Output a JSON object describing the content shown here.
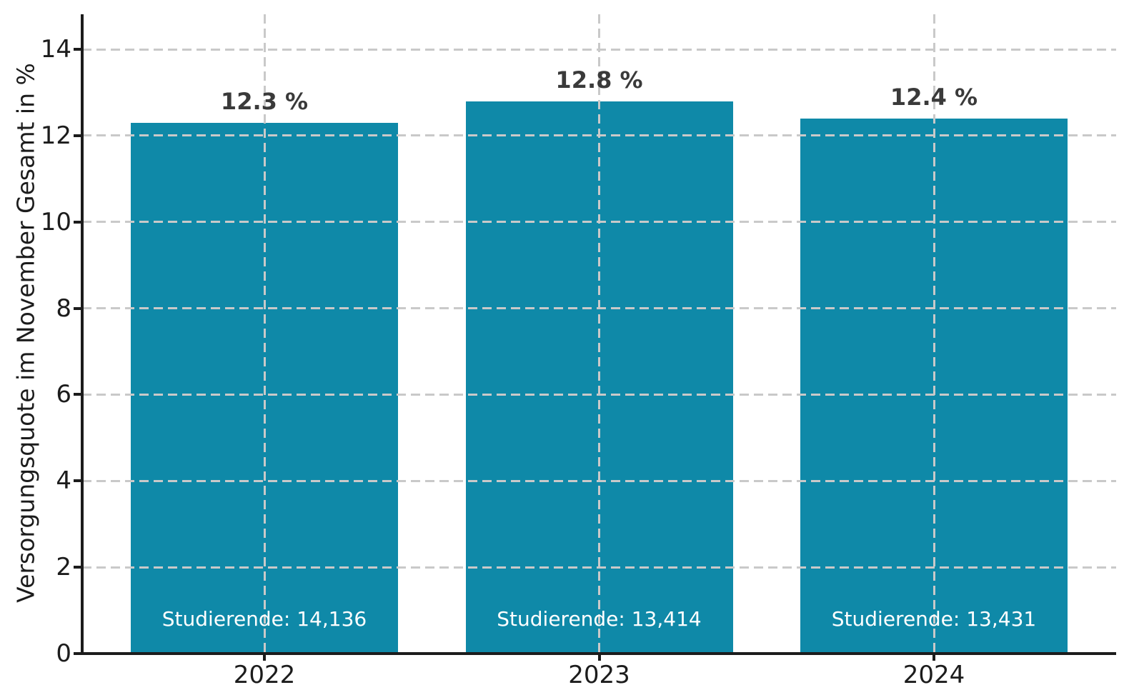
{
  "chart_data": {
    "type": "bar",
    "title": "",
    "xlabel": "",
    "ylabel": "Versorgungsquote im November Gesamt in %",
    "ylim": [
      0,
      14.8
    ],
    "yticks": [
      0,
      2,
      4,
      6,
      8,
      10,
      12,
      14
    ],
    "grid": true,
    "grid_style": "dashed",
    "legend": false,
    "bar_color": "#0f89a8",
    "grid_color": "#c9c9c9",
    "axis_color": "#1c1c1c",
    "value_label_color": "#3a3a3a",
    "inner_label_color": "#ffffff",
    "categories": [
      "2022",
      "2023",
      "2024"
    ],
    "values": [
      12.3,
      12.8,
      12.4
    ],
    "bars": [
      {
        "category": "2022",
        "value": 12.3,
        "value_label": "12.3 %",
        "inner_label": "Studierende: 14,136",
        "students": 14136
      },
      {
        "category": "2023",
        "value": 12.8,
        "value_label": "12.8 %",
        "inner_label": "Studierende: 13,414",
        "students": 13414
      },
      {
        "category": "2024",
        "value": 12.4,
        "value_label": "12.4 %",
        "inner_label": "Studierende: 13,431",
        "students": 13431
      }
    ]
  }
}
